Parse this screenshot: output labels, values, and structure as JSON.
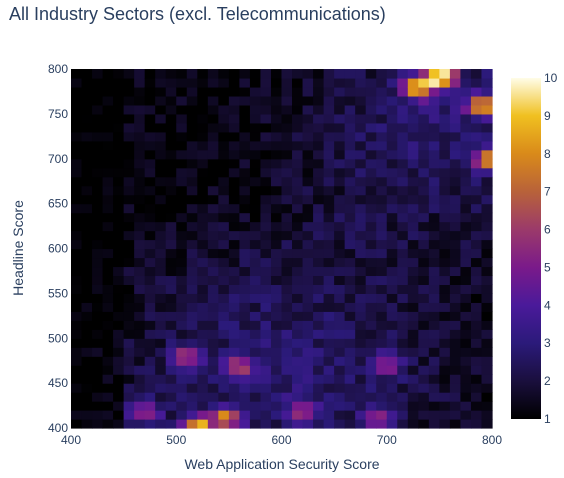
{
  "chart_data": {
    "type": "heatmap",
    "title": "All Industry Sectors (excl. Telecommunications)",
    "xlabel": "Web Application Security Score",
    "ylabel": "Headline Score",
    "xlim": [
      400,
      800
    ],
    "ylim": [
      400,
      800
    ],
    "x_ticks": [
      "400",
      "500",
      "600",
      "700",
      "800"
    ],
    "y_ticks": [
      "400",
      "450",
      "500",
      "550",
      "600",
      "650",
      "700",
      "750",
      "800"
    ],
    "colorbar": {
      "range": [
        1,
        10
      ],
      "ticks": [
        "1",
        "2",
        "3",
        "4",
        "5",
        "6",
        "7",
        "8",
        "9",
        "10"
      ],
      "colorscale": [
        "#0d0887",
        "#46039f",
        "#7201a8",
        "#9c179e",
        "#bd3786",
        "#d8576b",
        "#ed7953",
        "#fb9f3a",
        "#fdca26",
        "#f0f921"
      ],
      "display_colors": [
        "#000000",
        "#1a0f3d",
        "#2b1a7a",
        "#4a1a9a",
        "#7a1a8a",
        "#9b3a6a",
        "#b8623a",
        "#d98a1a",
        "#f0c020",
        "#fffde8"
      ]
    },
    "grid_bins": 40,
    "hotspots": [
      {
        "x": 752,
        "y": 792,
        "value": 9.5
      },
      {
        "x": 730,
        "y": 780,
        "value": 8.0
      },
      {
        "x": 790,
        "y": 760,
        "value": 7.5
      },
      {
        "x": 795,
        "y": 700,
        "value": 6.5
      },
      {
        "x": 520,
        "y": 402,
        "value": 8.0
      },
      {
        "x": 548,
        "y": 412,
        "value": 6.5
      },
      {
        "x": 470,
        "y": 418,
        "value": 5.5
      },
      {
        "x": 510,
        "y": 480,
        "value": 5.0
      },
      {
        "x": 560,
        "y": 470,
        "value": 5.0
      },
      {
        "x": 620,
        "y": 420,
        "value": 5.0
      },
      {
        "x": 690,
        "y": 410,
        "value": 4.5
      },
      {
        "x": 700,
        "y": 470,
        "value": 4.5
      }
    ]
  }
}
